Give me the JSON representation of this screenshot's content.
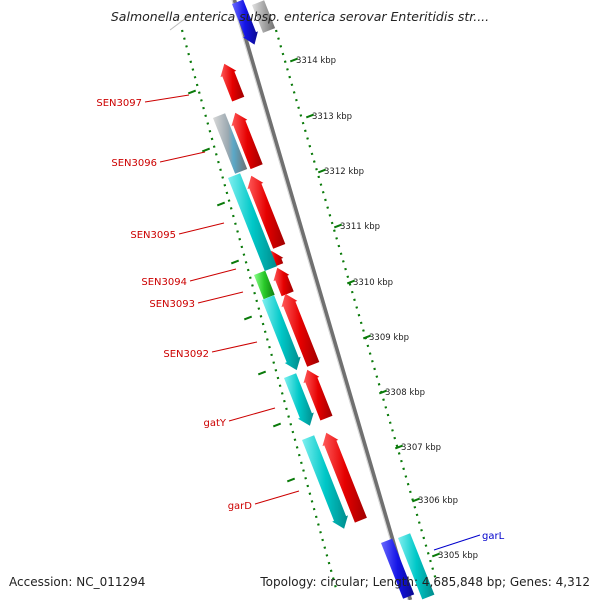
{
  "map": {
    "title": "Salmonella enterica subsp. enterica serovar Enteritidis str....",
    "accession": "Accession: NC_011294",
    "topology": "Topology: circular; Length: 4,685,848 bp; Genes: 4,312"
  },
  "ticks": [
    "3314 kbp",
    "3313 kbp",
    "3312 kbp",
    "3311 kbp",
    "3310 kbp",
    "3309 kbp",
    "3308 kbp",
    "3307 kbp",
    "3306 kbp",
    "3305 kbp"
  ],
  "gene_labels": [
    "SEN3097",
    "SEN3096",
    "SEN3095",
    "SEN3094",
    "SEN3093",
    "SEN3092",
    "gatY",
    "garD",
    "garL"
  ],
  "colors": {
    "forward_cds": "#e60000",
    "reverse_cds": "#00c8c8",
    "blue_cds": "#1414e6",
    "gray_cds": "#a0a0a0",
    "green_cds": "#28c828",
    "backbone": "#888888",
    "tick": "#0a7a0a",
    "label_red": "#cc0000",
    "label_blue": "#0000cc"
  }
}
